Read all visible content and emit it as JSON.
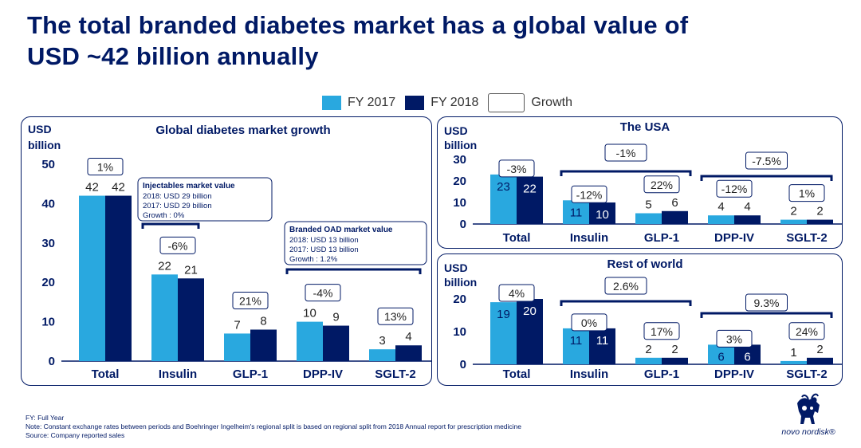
{
  "slide": {
    "title_line1": "The total branded diabetes market has a global value of",
    "title_line2": "USD ~42 billion annually"
  },
  "legend": {
    "fy2017": "FY 2017",
    "fy2018": "FY 2018",
    "growth": "Growth"
  },
  "colors": {
    "fy2017": "#29a8df",
    "fy2018": "#001965",
    "text": "#001965"
  },
  "chart_data": [
    {
      "id": "global",
      "type": "bar",
      "title": "Global diabetes market growth",
      "ylabel_line1": "USD",
      "ylabel_line2": "billion",
      "ylim": [
        0,
        50
      ],
      "yticks": [
        0,
        10,
        20,
        30,
        40,
        50
      ],
      "categories": [
        "Total",
        "Insulin",
        "GLP-1",
        "DPP-IV",
        "SGLT-2"
      ],
      "series": [
        {
          "name": "FY 2017",
          "values": [
            42,
            22,
            7,
            10,
            3
          ]
        },
        {
          "name": "FY 2018",
          "values": [
            42,
            21,
            8,
            9,
            4
          ]
        }
      ],
      "growth": [
        "1%",
        "-6%",
        "21%",
        "-4%",
        "13%"
      ],
      "group_growth": [],
      "callouts": [
        {
          "title": "Injectables market value",
          "lines": [
            "2018: USD 29 billion",
            "2017: USD 29 billion",
            "Growth : 0%"
          ]
        },
        {
          "title": "Branded OAD market value",
          "lines": [
            "2018: USD 13 billion",
            "2017: USD 13 billion",
            "Growth : 1.2%"
          ]
        }
      ]
    },
    {
      "id": "usa",
      "type": "bar",
      "title": "The USA",
      "ylabel_line1": "USD",
      "ylabel_line2": "billion",
      "ylim": [
        0,
        30
      ],
      "yticks": [
        0,
        10,
        20,
        30
      ],
      "categories": [
        "Total",
        "Insulin",
        "GLP-1",
        "DPP-IV",
        "SGLT-2"
      ],
      "series": [
        {
          "name": "FY 2017",
          "values": [
            23,
            11,
            5,
            4,
            2
          ]
        },
        {
          "name": "FY 2018",
          "values": [
            22,
            10,
            6,
            4,
            2
          ]
        }
      ],
      "growth": [
        "-3%",
        "-12%",
        "22%",
        "-12%",
        "1%"
      ],
      "group_growth": [
        "-1%",
        "-7.5%"
      ],
      "callouts": []
    },
    {
      "id": "row",
      "type": "bar",
      "title": "Rest of world",
      "ylabel_line1": "USD",
      "ylabel_line2": "billion",
      "ylim": [
        0,
        20
      ],
      "yticks": [
        0,
        10,
        20
      ],
      "categories": [
        "Total",
        "Insulin",
        "GLP-1",
        "DPP-IV",
        "SGLT-2"
      ],
      "series": [
        {
          "name": "FY 2017",
          "values": [
            19,
            11,
            2,
            6,
            1
          ]
        },
        {
          "name": "FY 2018",
          "values": [
            20,
            11,
            2,
            6,
            2
          ]
        }
      ],
      "growth": [
        "4%",
        "0%",
        "17%",
        "3%",
        "24%"
      ],
      "group_growth": [
        "2.6%",
        "9.3%"
      ],
      "callouts": []
    }
  ],
  "footnotes": {
    "fy": "FY: Full Year",
    "note": "Note: Constant exchange rates between periods and Boehringer Ingelheim's regional split is based on regional split from 2018 Annual report for prescription medicine",
    "source": "Source: Company reported sales"
  },
  "logo": {
    "icon": "apis-bull-icon",
    "text": "novo nordisk®"
  }
}
